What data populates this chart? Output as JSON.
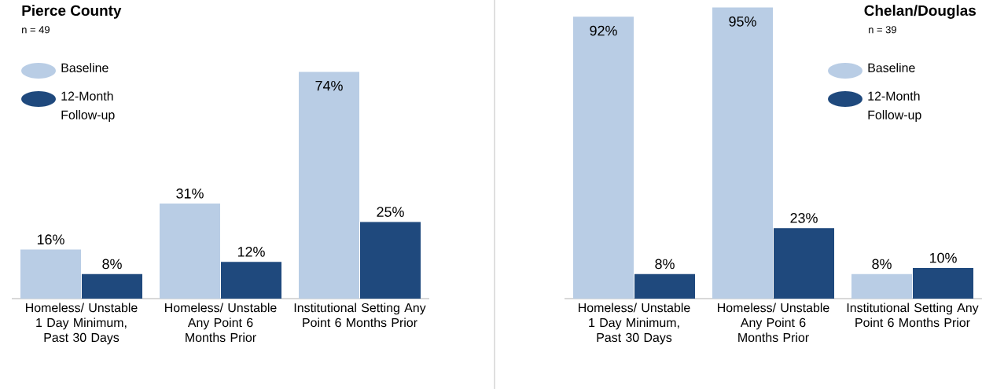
{
  "chart_data": [
    {
      "type": "bar",
      "title": "Pierce County",
      "subtitle": "n = 49",
      "categories": [
        "Homeless/ Unstable 1 Day Minimum, Past 30 Days",
        "Homeless/ Unstable Any Point 6 Months Prior",
        "Institutional Setting Any Point 6 Months Prior"
      ],
      "series": [
        {
          "name": "Baseline",
          "color": "#b9cde5",
          "values": [
            16,
            31,
            74
          ],
          "value_labels": [
            "16%",
            "31%",
            "74%"
          ]
        },
        {
          "name": "12-Month Follow-up",
          "color": "#1f497d",
          "values": [
            8,
            12,
            25
          ],
          "value_labels": [
            "8%",
            "12%",
            "25%"
          ]
        }
      ],
      "tick_labels": "x",
      "legend": "top left"
    },
    {
      "type": "bar",
      "title": "Chelan/Douglas",
      "subtitle": "n = 39",
      "categories": [
        "Homeless/ Unstable 1 Day Minimum, Past 30 Days",
        "Homeless/ Unstable Any Point 6 Months Prior",
        "Institutional Setting Any Point 6 Months Prior"
      ],
      "series": [
        {
          "name": "Baseline",
          "color": "#b9cde5",
          "values": [
            92,
            95,
            8
          ],
          "value_labels": [
            "92%",
            "95%",
            "8%"
          ]
        },
        {
          "name": "12-Month Follow-up",
          "color": "#1f497d",
          "values": [
            8,
            23,
            10
          ],
          "value_labels": [
            "8%",
            "23%",
            "10%"
          ]
        }
      ],
      "tick_labels": "x",
      "legend": "top right"
    }
  ]
}
